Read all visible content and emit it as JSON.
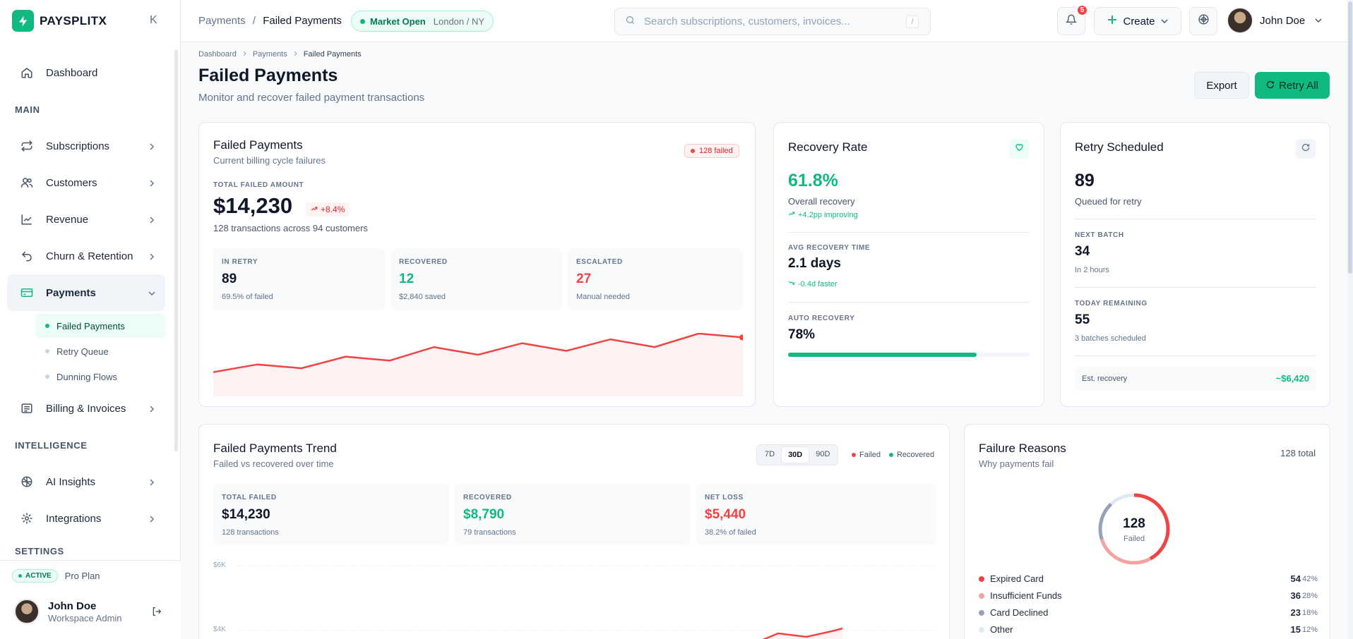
{
  "brand": {
    "name": "PAYSPLITX"
  },
  "sidebar": {
    "collapse_glyph": "K",
    "items": [
      {
        "label": "Dashboard"
      },
      {
        "section": "MAIN"
      },
      {
        "label": "Subscriptions"
      },
      {
        "label": "Customers"
      },
      {
        "label": "Revenue"
      },
      {
        "label": "Churn & Retention"
      },
      {
        "label": "Payments"
      },
      {
        "label": "Billing & Invoices"
      },
      {
        "section": "INTELLIGENCE"
      },
      {
        "label": "AI Insights"
      },
      {
        "label": "Integrations"
      },
      {
        "section": "SETTINGS"
      }
    ],
    "payments_sub": [
      "Failed Payments",
      "Retry Queue",
      "Dunning Flows"
    ],
    "footer": {
      "badge": "ACTIVE",
      "plan": "Pro Plan",
      "user_name": "John Doe",
      "user_role": "Workspace Admin"
    }
  },
  "topbar": {
    "crumb_parent": "Payments",
    "crumb_sep": "/",
    "crumb_current": "Failed Payments",
    "market_status": "Market Open",
    "market_location": "London / NY",
    "search_placeholder": "Search subscriptions, customers, invoices...",
    "search_shortcut": "/",
    "notif_count": "5",
    "create_label": "Create",
    "user_name": "John Doe"
  },
  "page": {
    "crumbs": [
      "Dashboard",
      "Payments",
      "Failed Payments"
    ],
    "title": "Failed Payments",
    "subtitle": "Monitor and recover failed payment transactions",
    "export_label": "Export",
    "retry_all_label": "Retry All"
  },
  "failed_card": {
    "title": "Failed Payments",
    "subtitle": "Current billing cycle failures",
    "badge": "128 failed",
    "total_label": "TOTAL FAILED AMOUNT",
    "total_amount": "$14,230",
    "delta": "+8.4%",
    "desc": "128 transactions across 94 customers",
    "boxes": [
      {
        "label": "IN RETRY",
        "value": "89",
        "sub": "69.5% of failed"
      },
      {
        "label": "RECOVERED",
        "value": "12",
        "sub": "$2,840 saved"
      },
      {
        "label": "ESCALATED",
        "value": "27",
        "sub": "Manual needed"
      }
    ],
    "sparkline": [
      6,
      10,
      8,
      14,
      12,
      19,
      15,
      21,
      17,
      23,
      19,
      26,
      24
    ]
  },
  "recovery_card": {
    "title": "Recovery Rate",
    "rate": "61.8%",
    "rate_label": "Overall recovery",
    "rate_delta": "+4.2pp improving",
    "avg_label": "AVG RECOVERY TIME",
    "avg_value": "2.1 days",
    "avg_delta": "-0.4d faster",
    "auto_label": "AUTO RECOVERY",
    "auto_value": "78%",
    "auto_progress": 0.78
  },
  "retry_card": {
    "title": "Retry Scheduled",
    "queued": "89",
    "queued_label": "Queued for retry",
    "next_label": "NEXT BATCH",
    "next_value": "34",
    "next_sub": "In 2 hours",
    "today_label": "TODAY REMAINING",
    "today_value": "55",
    "today_sub": "3 batches scheduled",
    "est_label": "Est. recovery",
    "est_value": "~$6,420"
  },
  "trend_card": {
    "title": "Failed Payments Trend",
    "subtitle": "Failed vs recovered over time",
    "ranges": [
      "7D",
      "30D",
      "90D"
    ],
    "legend": [
      "Failed",
      "Recovered"
    ],
    "stats": [
      {
        "label": "TOTAL FAILED",
        "value": "$14,230",
        "sub": "128 transactions"
      },
      {
        "label": "RECOVERED",
        "value": "$8,790",
        "sub": "79 transactions"
      },
      {
        "label": "NET LOSS",
        "value": "$5,440",
        "sub": "38.2% of failed"
      }
    ],
    "y_ticks": [
      "$6K",
      "$4K"
    ]
  },
  "reasons_card": {
    "title": "Failure Reasons",
    "subtitle": "Why payments fail",
    "total": "128 total",
    "center_value": "128",
    "center_label": "Failed",
    "reasons": [
      {
        "name": "Expired Card",
        "count": "54",
        "pct": "42%",
        "color": "#ef4444"
      },
      {
        "name": "Insufficient Funds",
        "count": "36",
        "pct": "28%",
        "color": "#f4a3a3"
      },
      {
        "name": "Card Declined",
        "count": "23",
        "pct": "18%",
        "color": "#94a3b8"
      },
      {
        "name": "Other",
        "count": "15",
        "pct": "12%",
        "color": "#e2e8f0"
      }
    ]
  },
  "colors": {
    "accent": "#10b981",
    "danger": "#ef4444"
  }
}
